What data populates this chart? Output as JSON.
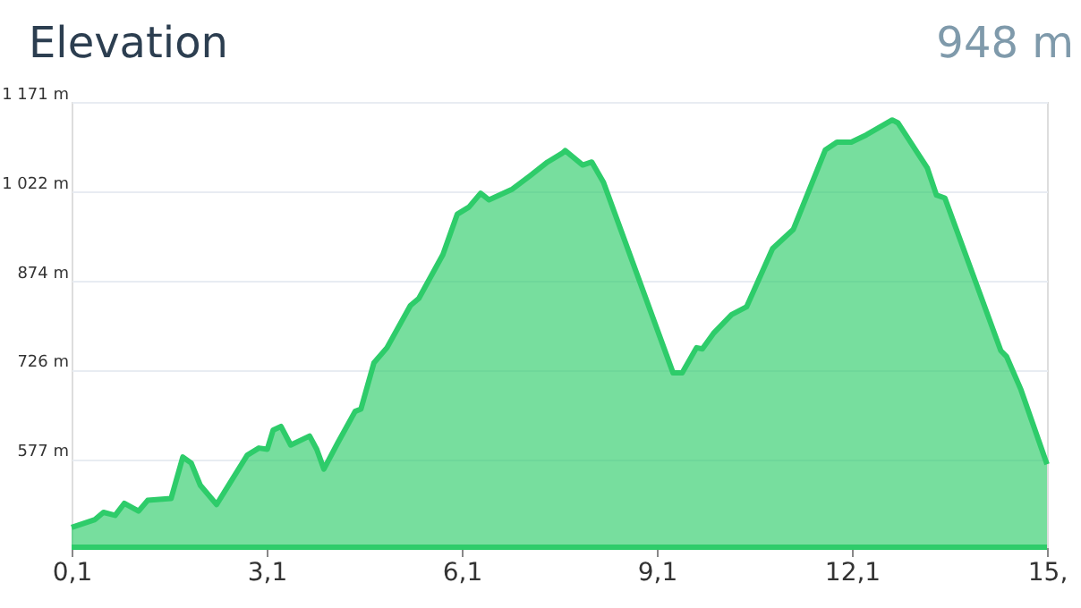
{
  "chart_data": {
    "type": "area",
    "title": "Elevation",
    "annotations": [
      "948 m"
    ],
    "x": [
      0.1,
      0.46,
      0.59,
      0.77,
      0.91,
      1.13,
      1.27,
      1.63,
      1.81,
      1.94,
      2.08,
      2.33,
      2.8,
      2.98,
      3.11,
      3.2,
      3.32,
      3.47,
      3.76,
      3.87,
      3.98,
      4.19,
      4.46,
      4.55,
      4.75,
      4.95,
      5.31,
      5.44,
      5.81,
      6.03,
      6.21,
      6.39,
      6.52,
      6.88,
      7.15,
      7.42,
      7.65,
      7.69,
      7.96,
      8.1,
      8.28,
      9.35,
      9.49,
      9.71,
      9.8,
      9.98,
      10.25,
      10.48,
      10.88,
      11.2,
      11.69,
      11.87,
      12.09,
      12.32,
      12.72,
      12.81,
      13.26,
      13.4,
      13.53,
      14.39,
      14.48,
      14.7,
      15.1
    ],
    "series": [
      {
        "color": "#2ecc6a",
        "values": [
          463,
          476,
          488,
          483,
          503,
          490,
          508,
          511,
          580,
          570,
          533,
          501,
          583,
          595,
          593,
          625,
          631,
          600,
          615,
          593,
          560,
          603,
          656,
          660,
          737,
          762,
          832,
          844,
          917,
          984,
          996,
          1019,
          1008,
          1026,
          1048,
          1071,
          1086,
          1090,
          1066,
          1071,
          1037,
          720,
          720,
          762,
          760,
          787,
          817,
          830,
          927,
          959,
          1091,
          1104,
          1104,
          1116,
          1141,
          1136,
          1061,
          1016,
          1011,
          757,
          747,
          692,
          568
        ]
      }
    ],
    "xlim": [
      0.1,
      15.1
    ],
    "xticks": [
      {
        "value": 0.1,
        "label": "0,1"
      },
      {
        "value": 3.1,
        "label": "3,1"
      },
      {
        "value": 6.1,
        "label": "6,1"
      },
      {
        "value": 9.1,
        "label": "9,1"
      },
      {
        "value": 12.1,
        "label": "12,1"
      },
      {
        "value": 15.1,
        "label": "15,"
      }
    ],
    "ylim": [
      430,
      1171
    ],
    "yticks": [
      {
        "value": 577,
        "label": "577 m"
      },
      {
        "value": 726,
        "label": "726 m"
      },
      {
        "value": 874,
        "label": "874 m"
      },
      {
        "value": 1022,
        "label": "1 022 m"
      },
      {
        "value": 1171,
        "label": "1 171 m"
      }
    ],
    "grid": "y"
  }
}
